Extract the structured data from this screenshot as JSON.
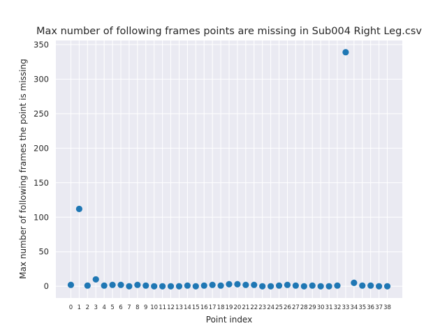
{
  "chart_data": {
    "type": "scatter",
    "title": "Max number of following frames points are missing in Sub004 Right Leg.csv",
    "xlabel": "Point index",
    "ylabel": "Max number of following frames the point is missing",
    "x": [
      0,
      1,
      2,
      3,
      4,
      5,
      6,
      7,
      8,
      9,
      10,
      11,
      12,
      13,
      14,
      15,
      16,
      17,
      18,
      19,
      20,
      21,
      22,
      23,
      24,
      25,
      26,
      27,
      28,
      29,
      30,
      31,
      32,
      33,
      34,
      35,
      36,
      37,
      38
    ],
    "x_tick_labels": [
      "0",
      "1",
      "2",
      "3",
      "4",
      "5",
      "6",
      "7",
      "8",
      "9",
      "10",
      "11",
      "12",
      "13",
      "14",
      "15",
      "16",
      "17",
      "18",
      "19",
      "20",
      "21",
      "22",
      "23",
      "24",
      "25",
      "26",
      "27",
      "28",
      "29",
      "30",
      "31",
      "32",
      "33",
      "34",
      "35",
      "36",
      "37",
      "38"
    ],
    "y": [
      2,
      112,
      1,
      10,
      1,
      2,
      2,
      0,
      2,
      1,
      0,
      0,
      0,
      0,
      1,
      0,
      1,
      2,
      1,
      3,
      3,
      2,
      2,
      0,
      0,
      1,
      2,
      1,
      0,
      1,
      0,
      0,
      1,
      339,
      5,
      1,
      1,
      0,
      0
    ],
    "y_ticks": [
      0,
      50,
      100,
      150,
      200,
      250,
      300,
      350
    ],
    "y_tick_labels": [
      "0",
      "50",
      "100",
      "150",
      "200",
      "250",
      "300",
      "350"
    ],
    "xlim": [
      -1.8,
      39.8
    ],
    "ylim": [
      -17,
      356
    ],
    "grid": true,
    "style": "seaborn-darkgrid",
    "colors": {
      "point": "#1f77b4",
      "plot_background": "#eaeaf2",
      "grid": "#ffffff",
      "text": "#262626"
    }
  }
}
